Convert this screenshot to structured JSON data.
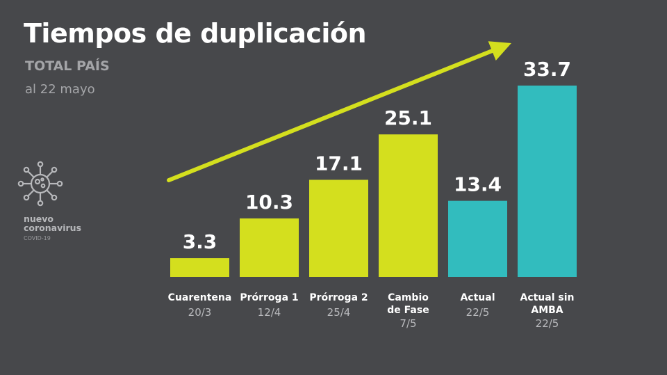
{
  "header": {
    "title": "Tiempos de duplicación",
    "subtitle": "TOTAL PAÍS",
    "date": "al 22 mayo"
  },
  "logo": {
    "icon": "virus-icon",
    "line1": "nuevo",
    "line2": "coronavirus",
    "sub": "COVID-19"
  },
  "colors": {
    "background": "#47484b",
    "lime": "#d4df1e",
    "teal": "#32bcbe"
  },
  "chart_data": {
    "type": "bar",
    "title": "Tiempos de duplicación",
    "subtitle": "TOTAL PAÍS",
    "categories": [
      [
        "Cuarentena"
      ],
      [
        "Prórroga 1"
      ],
      [
        "Prórroga 2"
      ],
      [
        "Cambio",
        "de Fase"
      ],
      [
        "Actual"
      ],
      [
        "Actual sin",
        "AMBA"
      ]
    ],
    "dates": [
      "20/3",
      "12/4",
      "25/4",
      "7/5",
      "22/5",
      "22/5"
    ],
    "values": [
      3.3,
      10.3,
      17.1,
      25.1,
      13.4,
      33.7
    ],
    "value_labels": [
      "3.3",
      "10.3",
      "17.1",
      "25.1",
      "13.4",
      "33.7"
    ],
    "bar_colors": [
      "#d4df1e",
      "#d4df1e",
      "#d4df1e",
      "#d4df1e",
      "#32bcbe",
      "#32bcbe"
    ],
    "ylim": [
      0,
      33.7
    ],
    "grid": false,
    "annotation": "trend-arrow"
  }
}
